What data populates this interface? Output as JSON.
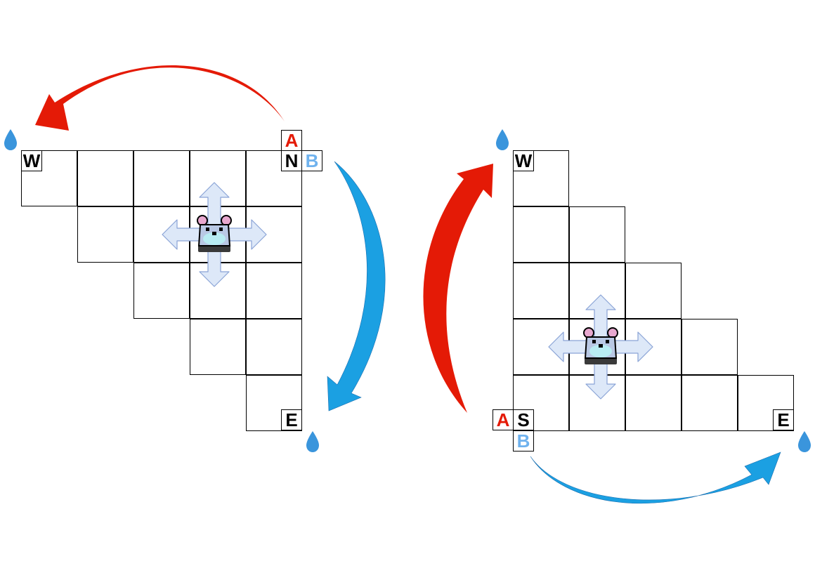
{
  "colors": {
    "policy_a": "#e41a06",
    "policy_b": "#1ba0e2",
    "label_b": "#6fb2ee",
    "move_arrow_fill": "#dde8f8",
    "move_arrow_stroke": "#8aa3d6",
    "water": "#3a95dc",
    "mouse_body": "#b9c8e4",
    "mouse_belly": "#b8ecf2",
    "mouse_ear": "#e8a8cf"
  },
  "left_panel": {
    "tags": {
      "a": "A",
      "north": "N",
      "b": "B",
      "west": "W",
      "east": "E"
    },
    "icons": [
      "water-drop-icon",
      "mouse-icon",
      "four-way-arrow-icon"
    ]
  },
  "right_panel": {
    "tags": {
      "west": "W",
      "a": "A",
      "south": "S",
      "b": "B",
      "east": "E"
    },
    "icons": [
      "water-drop-icon",
      "mouse-icon",
      "four-way-arrow-icon"
    ]
  }
}
